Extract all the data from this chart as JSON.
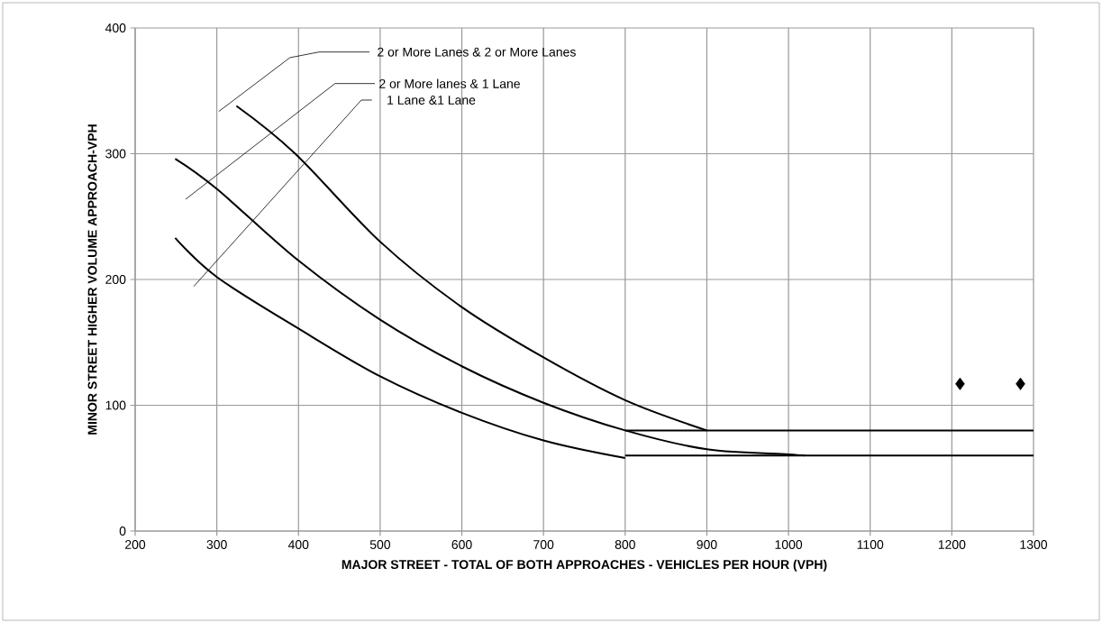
{
  "chart_data": {
    "type": "line",
    "xlabel": "MAJOR STREET - TOTAL OF BOTH APPROACHES - VEHICLES PER HOUR (VPH)",
    "ylabel": "MINOR STREET HIGHER VOLUME APPROACH-VPH",
    "xlim": [
      200,
      1300
    ],
    "xticks": [
      200,
      300,
      400,
      500,
      600,
      700,
      800,
      900,
      1000,
      1100,
      1200,
      1300
    ],
    "ylim": [
      0,
      400
    ],
    "yticks": [
      0,
      100,
      200,
      300,
      400
    ],
    "grid": true,
    "series": [
      {
        "color": "#000000",
        "x": [
          324,
          396,
          500,
          600,
          700,
          800,
          900
        ],
        "values": [
          338,
          300,
          230,
          178,
          138,
          104,
          80
        ]
      },
      {
        "color": "#000000",
        "x": [
          249,
          300,
          400,
          500,
          600,
          700,
          800,
          900,
          1000,
          1020
        ],
        "values": [
          296,
          272,
          215,
          168,
          131,
          102,
          80,
          65,
          61,
          60
        ]
      },
      {
        "color": "#000000",
        "x": [
          249,
          300,
          400,
          500,
          600,
          700,
          800
        ],
        "values": [
          233,
          202,
          161,
          123,
          94,
          72,
          58
        ]
      },
      {
        "color": "#000000",
        "x": [
          800,
          1300
        ],
        "values": [
          80,
          80
        ]
      },
      {
        "color": "#000000",
        "x": [
          800,
          1300
        ],
        "values": [
          60,
          60
        ]
      },
      {
        "type": "scatter",
        "marker": "diamond",
        "color": "#000000",
        "x": [
          1210,
          1284
        ],
        "values": [
          117,
          117
        ]
      }
    ],
    "annotations": [
      "2 or More Lanes & 2 or More Lanes",
      "2 or More lanes & 1 Lane",
      "1 Lane &1 Lane"
    ]
  }
}
